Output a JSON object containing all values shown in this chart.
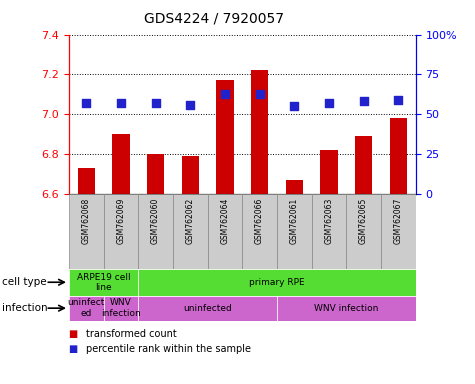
{
  "title": "GDS4224 / 7920057",
  "samples": [
    "GSM762068",
    "GSM762069",
    "GSM762060",
    "GSM762062",
    "GSM762064",
    "GSM762066",
    "GSM762061",
    "GSM762063",
    "GSM762065",
    "GSM762067"
  ],
  "transformed_counts": [
    6.73,
    6.9,
    6.8,
    6.79,
    7.17,
    7.22,
    6.67,
    6.82,
    6.89,
    6.98
  ],
  "percentile_ranks": [
    57,
    57,
    57,
    56,
    63,
    63,
    55,
    57,
    58,
    59
  ],
  "ylim_left": [
    6.6,
    7.4
  ],
  "ylim_right": [
    0,
    100
  ],
  "yticks_left": [
    6.6,
    6.8,
    7.0,
    7.2,
    7.4
  ],
  "yticks_right": [
    0,
    25,
    50,
    75,
    100
  ],
  "ytick_labels_right": [
    "0",
    "25",
    "50",
    "75",
    "100%"
  ],
  "bar_color": "#cc0000",
  "dot_color": "#2222cc",
  "bar_width": 0.5,
  "dot_size": 30,
  "cell_type_groups": [
    {
      "label": "ARPE19 cell\nline",
      "start": 0,
      "end": 2,
      "color": "#55dd33"
    },
    {
      "label": "primary RPE",
      "start": 2,
      "end": 10,
      "color": "#55dd33"
    }
  ],
  "infection_groups": [
    {
      "label": "uninfect\ned",
      "start": 0,
      "end": 1,
      "color": "#cc66cc"
    },
    {
      "label": "WNV\ninfection",
      "start": 1,
      "end": 2,
      "color": "#cc66cc"
    },
    {
      "label": "uninfected",
      "start": 2,
      "end": 6,
      "color": "#cc66cc"
    },
    {
      "label": "WNV infection",
      "start": 6,
      "end": 10,
      "color": "#cc66cc"
    }
  ],
  "cell_type_label": "cell type",
  "infection_label": "infection",
  "legend_items": [
    {
      "label": "transformed count",
      "color": "#cc0000"
    },
    {
      "label": "percentile rank within the sample",
      "color": "#2222cc"
    }
  ],
  "sample_bg_color": "#cccccc",
  "sample_border_color": "#888888"
}
